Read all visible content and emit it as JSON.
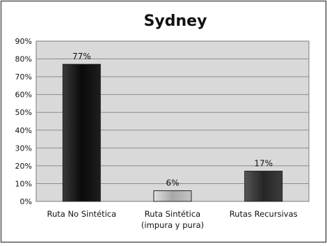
{
  "chart_data": {
    "type": "bar",
    "title": "Sydney",
    "xlabel": "",
    "ylabel": "",
    "categories": [
      [
        "Ruta No Sintética"
      ],
      [
        "Ruta Sintética",
        "(impura y pura)"
      ],
      [
        "Rutas Recursivas"
      ]
    ],
    "values": [
      77,
      6,
      17
    ],
    "data_labels": [
      "77%",
      "6%",
      "17%"
    ],
    "ylim": [
      0,
      90
    ],
    "ytick_step": 10,
    "ytick_labels": [
      "0%",
      "10%",
      "20%",
      "30%",
      "40%",
      "50%",
      "60%",
      "70%",
      "80%",
      "90%"
    ],
    "grid": true,
    "legend": "none",
    "bar_colors": [
      "#0a0a0a",
      "#b0b0b0",
      "#2e2e2e"
    ],
    "plot_background": "#d9d9d9",
    "gridline_color": "#8c8c8c"
  }
}
